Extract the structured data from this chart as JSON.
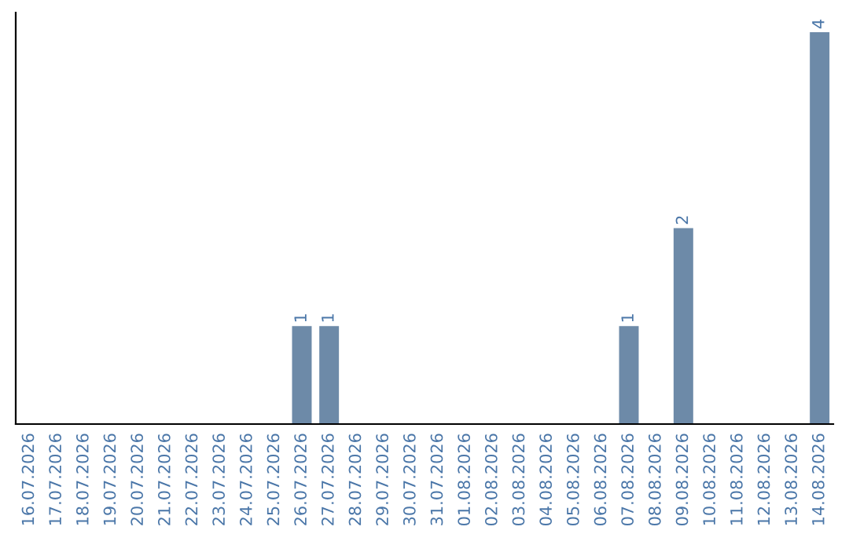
{
  "chart_data": {
    "type": "bar",
    "categories": [
      "16.07.2026",
      "17.07.2026",
      "18.07.2026",
      "19.07.2026",
      "20.07.2026",
      "21.07.2026",
      "22.07.2026",
      "23.07.2026",
      "24.07.2026",
      "25.07.2026",
      "26.07.2026",
      "27.07.2026",
      "28.07.2026",
      "29.07.2026",
      "30.07.2026",
      "31.07.2026",
      "01.08.2026",
      "02.08.2026",
      "03.08.2026",
      "04.08.2026",
      "05.08.2026",
      "06.08.2026",
      "07.08.2026",
      "08.08.2026",
      "09.08.2026",
      "10.08.2026",
      "11.08.2026",
      "12.08.2026",
      "13.08.2026",
      "14.08.2026"
    ],
    "values": [
      0,
      0,
      0,
      0,
      0,
      0,
      0,
      0,
      0,
      0,
      1,
      1,
      0,
      0,
      0,
      0,
      0,
      0,
      0,
      0,
      0,
      0,
      1,
      0,
      2,
      0,
      0,
      0,
      0,
      4
    ],
    "value_labels": [
      null,
      null,
      null,
      null,
      null,
      null,
      null,
      null,
      null,
      null,
      "1",
      "1",
      null,
      null,
      null,
      null,
      null,
      null,
      null,
      null,
      null,
      null,
      "1",
      null,
      "2",
      null,
      null,
      null,
      null,
      "4"
    ],
    "color": "#6d8aa8",
    "ylim": [
      0,
      4.2
    ],
    "tick_labels": "x",
    "grid": false,
    "legend": false
  }
}
